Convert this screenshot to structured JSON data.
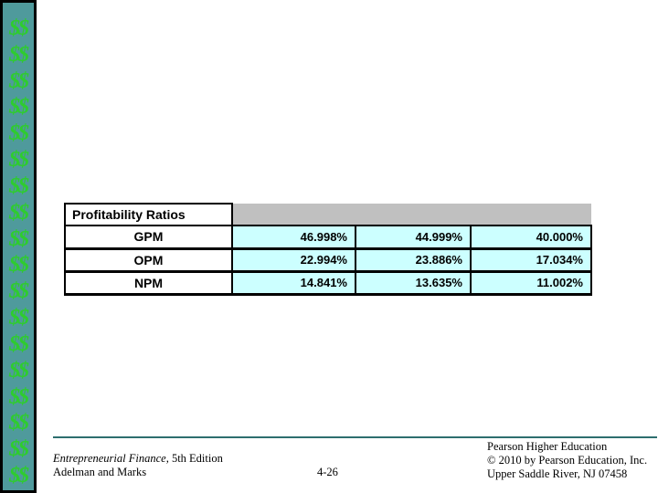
{
  "sidebar": {
    "symbol": "$$",
    "count": 18,
    "bar_color": "#4f9a9c",
    "symbol_color": "#2ecc2e"
  },
  "table": {
    "header": "Profitability Ratios",
    "header_band_color": "#c0c0c0",
    "value_cell_color": "#ccffff",
    "rows": [
      {
        "label": "GPM",
        "values": [
          "46.998%",
          "44.999%",
          "40.000%"
        ]
      },
      {
        "label": "OPM",
        "values": [
          "22.994%",
          "23.886%",
          "17.034%"
        ]
      },
      {
        "label": "NPM",
        "values": [
          "14.841%",
          "13.635%",
          "11.002%"
        ]
      }
    ]
  },
  "footer": {
    "book_title_italic": "Entrepreneurial Finance,",
    "book_edition": " 5th Edition",
    "authors": "Adelman and Marks",
    "page_number": "4-26",
    "publisher_lines": [
      "Pearson Higher Education",
      "© 2010 by Pearson Education, Inc.",
      "Upper Saddle River, NJ 07458"
    ],
    "divider_color": "#2d6e6e"
  }
}
